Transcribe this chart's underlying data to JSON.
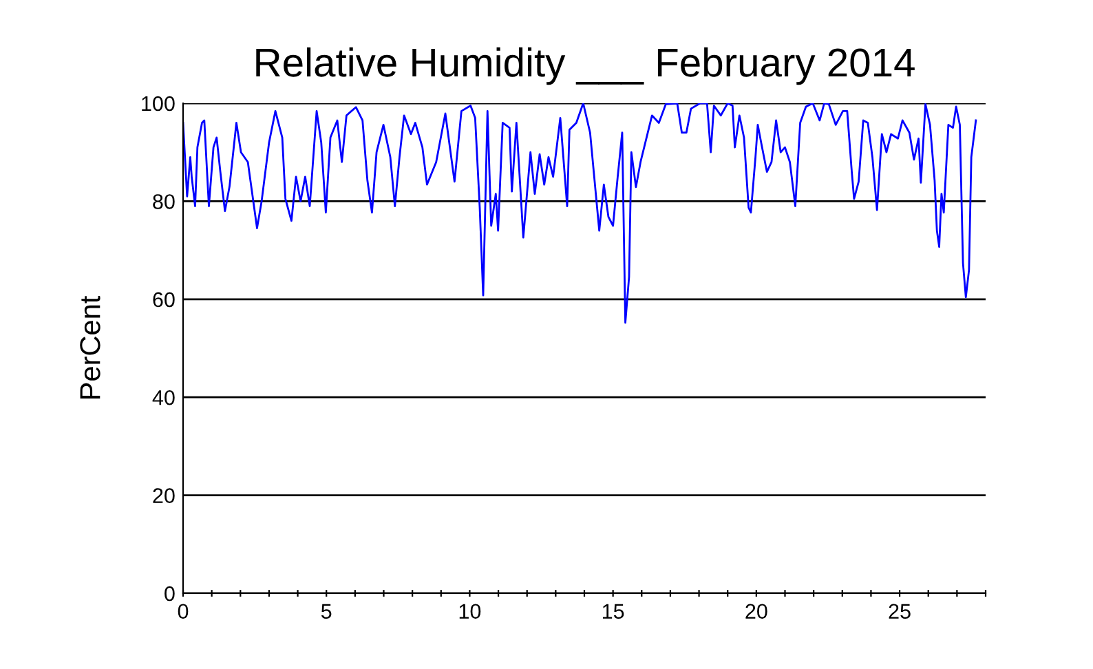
{
  "chart_data": {
    "type": "line",
    "title": "Relative Humidity ___ February 2014",
    "ylabel": "PerCent",
    "xlim": [
      0,
      28
    ],
    "xticks": [
      0,
      {
        "value": 1,
        "label": null
      },
      {
        "value": 2,
        "label": null
      },
      {
        "value": 3,
        "label": null
      },
      {
        "value": 4,
        "label": null
      },
      5,
      {
        "value": 6,
        "label": null
      },
      {
        "value": 7,
        "label": null
      },
      {
        "value": 8,
        "label": null
      },
      {
        "value": 9,
        "label": null
      },
      10,
      {
        "value": 11,
        "label": null
      },
      {
        "value": 12,
        "label": null
      },
      {
        "value": 13,
        "label": null
      },
      {
        "value": 14,
        "label": null
      },
      15,
      {
        "value": 16,
        "label": null
      },
      {
        "value": 17,
        "label": null
      },
      {
        "value": 18,
        "label": null
      },
      {
        "value": 19,
        "label": null
      },
      20,
      {
        "value": 21,
        "label": null
      },
      {
        "value": 22,
        "label": null
      },
      {
        "value": 23,
        "label": null
      },
      {
        "value": 24,
        "label": null
      },
      25,
      {
        "value": 26,
        "label": null
      },
      {
        "value": 27,
        "label": null
      },
      {
        "value": 28,
        "label": null
      }
    ],
    "ylim": [
      0,
      100
    ],
    "yticks": [
      0,
      20,
      40,
      60,
      80,
      100
    ],
    "grid": "y",
    "legend": false,
    "series": [
      {
        "color": "#0000ff",
        "x": [
          0.0,
          0.14,
          0.25,
          0.3,
          0.42,
          0.5,
          0.66,
          0.74,
          0.9,
          1.06,
          1.17,
          1.3,
          1.46,
          1.62,
          1.86,
          2.02,
          2.26,
          2.58,
          2.74,
          3.0,
          3.22,
          3.46,
          3.57,
          3.78,
          3.94,
          4.1,
          4.26,
          4.42,
          4.66,
          4.82,
          4.98,
          5.14,
          5.38,
          5.54,
          5.7,
          6.03,
          6.26,
          6.43,
          6.59,
          6.75,
          6.99,
          7.23,
          7.39,
          7.55,
          7.71,
          7.95,
          8.1,
          8.35,
          8.51,
          8.83,
          9.15,
          9.47,
          9.71,
          10.03,
          10.19,
          10.35,
          10.47,
          10.62,
          10.75,
          10.91,
          10.99,
          11.15,
          11.39,
          11.47,
          11.63,
          11.87,
          12.12,
          12.27,
          12.44,
          12.6,
          12.75,
          12.91,
          13.16,
          13.4,
          13.48,
          13.72,
          13.96,
          14.2,
          14.52,
          14.68,
          14.84,
          15.0,
          15.16,
          15.32,
          15.43,
          15.56,
          15.64,
          15.8,
          15.96,
          16.12,
          16.36,
          16.6,
          16.84,
          17.24,
          17.4,
          17.56,
          17.72,
          18.04,
          18.28,
          18.41,
          18.52,
          18.76,
          19.0,
          19.17,
          19.25,
          19.41,
          19.57,
          19.73,
          19.81,
          19.97,
          20.05,
          20.2,
          20.37,
          20.53,
          20.69,
          20.85,
          21.0,
          21.17,
          21.36,
          21.53,
          21.73,
          21.97,
          22.21,
          22.37,
          22.53,
          22.77,
          23.02,
          23.17,
          23.33,
          23.41,
          23.57,
          23.73,
          23.89,
          24.05,
          24.21,
          24.38,
          24.54,
          24.7,
          24.94,
          25.1,
          25.34,
          25.5,
          25.66,
          25.74,
          25.9,
          26.06,
          26.22,
          26.3,
          26.38,
          26.46,
          26.54,
          26.7,
          26.86,
          26.97,
          27.1,
          27.21,
          27.31,
          27.42,
          27.5,
          27.66
        ],
        "values": [
          96,
          81,
          89,
          85,
          79,
          91,
          96,
          96.5,
          79,
          91,
          93,
          86,
          78,
          83,
          96,
          90,
          88,
          74.5,
          80,
          92,
          98.4,
          93,
          80.5,
          76,
          85,
          80,
          85,
          79,
          98.4,
          92,
          77.7,
          93,
          96.5,
          88,
          97.5,
          99.2,
          96.5,
          84.3,
          77.7,
          90,
          95.6,
          89,
          79,
          89,
          97.5,
          93.7,
          96,
          91,
          83.4,
          88,
          97.9,
          84,
          98.4,
          99.5,
          97,
          78.7,
          60.8,
          98.4,
          75,
          81.5,
          74,
          96,
          95,
          82,
          96,
          72.6,
          90,
          81.5,
          89.6,
          83.4,
          89,
          85,
          97,
          79,
          94.6,
          96,
          100,
          94,
          74,
          83.4,
          76.8,
          75,
          84.8,
          94,
          55.2,
          64.6,
          90,
          82.9,
          88,
          91.8,
          97.5,
          96,
          99.8,
          100,
          94,
          94,
          98.9,
          100,
          100,
          90,
          99.5,
          97.5,
          100,
          99.5,
          91,
          97.5,
          93,
          78.7,
          77.7,
          89,
          95.6,
          91,
          86,
          88,
          96.5,
          90,
          91,
          88,
          79,
          96,
          99.3,
          100,
          96.5,
          100,
          99.8,
          95.6,
          98.4,
          98.4,
          86,
          80.5,
          84,
          96.5,
          96,
          89,
          78.2,
          93.7,
          90,
          93.7,
          92.8,
          96.5,
          94,
          88.5,
          92.8,
          83.8,
          99.8,
          95.6,
          84.3,
          74,
          70.7,
          81.5,
          77.7,
          95.6,
          95,
          99.3,
          95.6,
          67.4,
          60.4,
          66,
          89,
          96.5
        ]
      }
    ]
  }
}
